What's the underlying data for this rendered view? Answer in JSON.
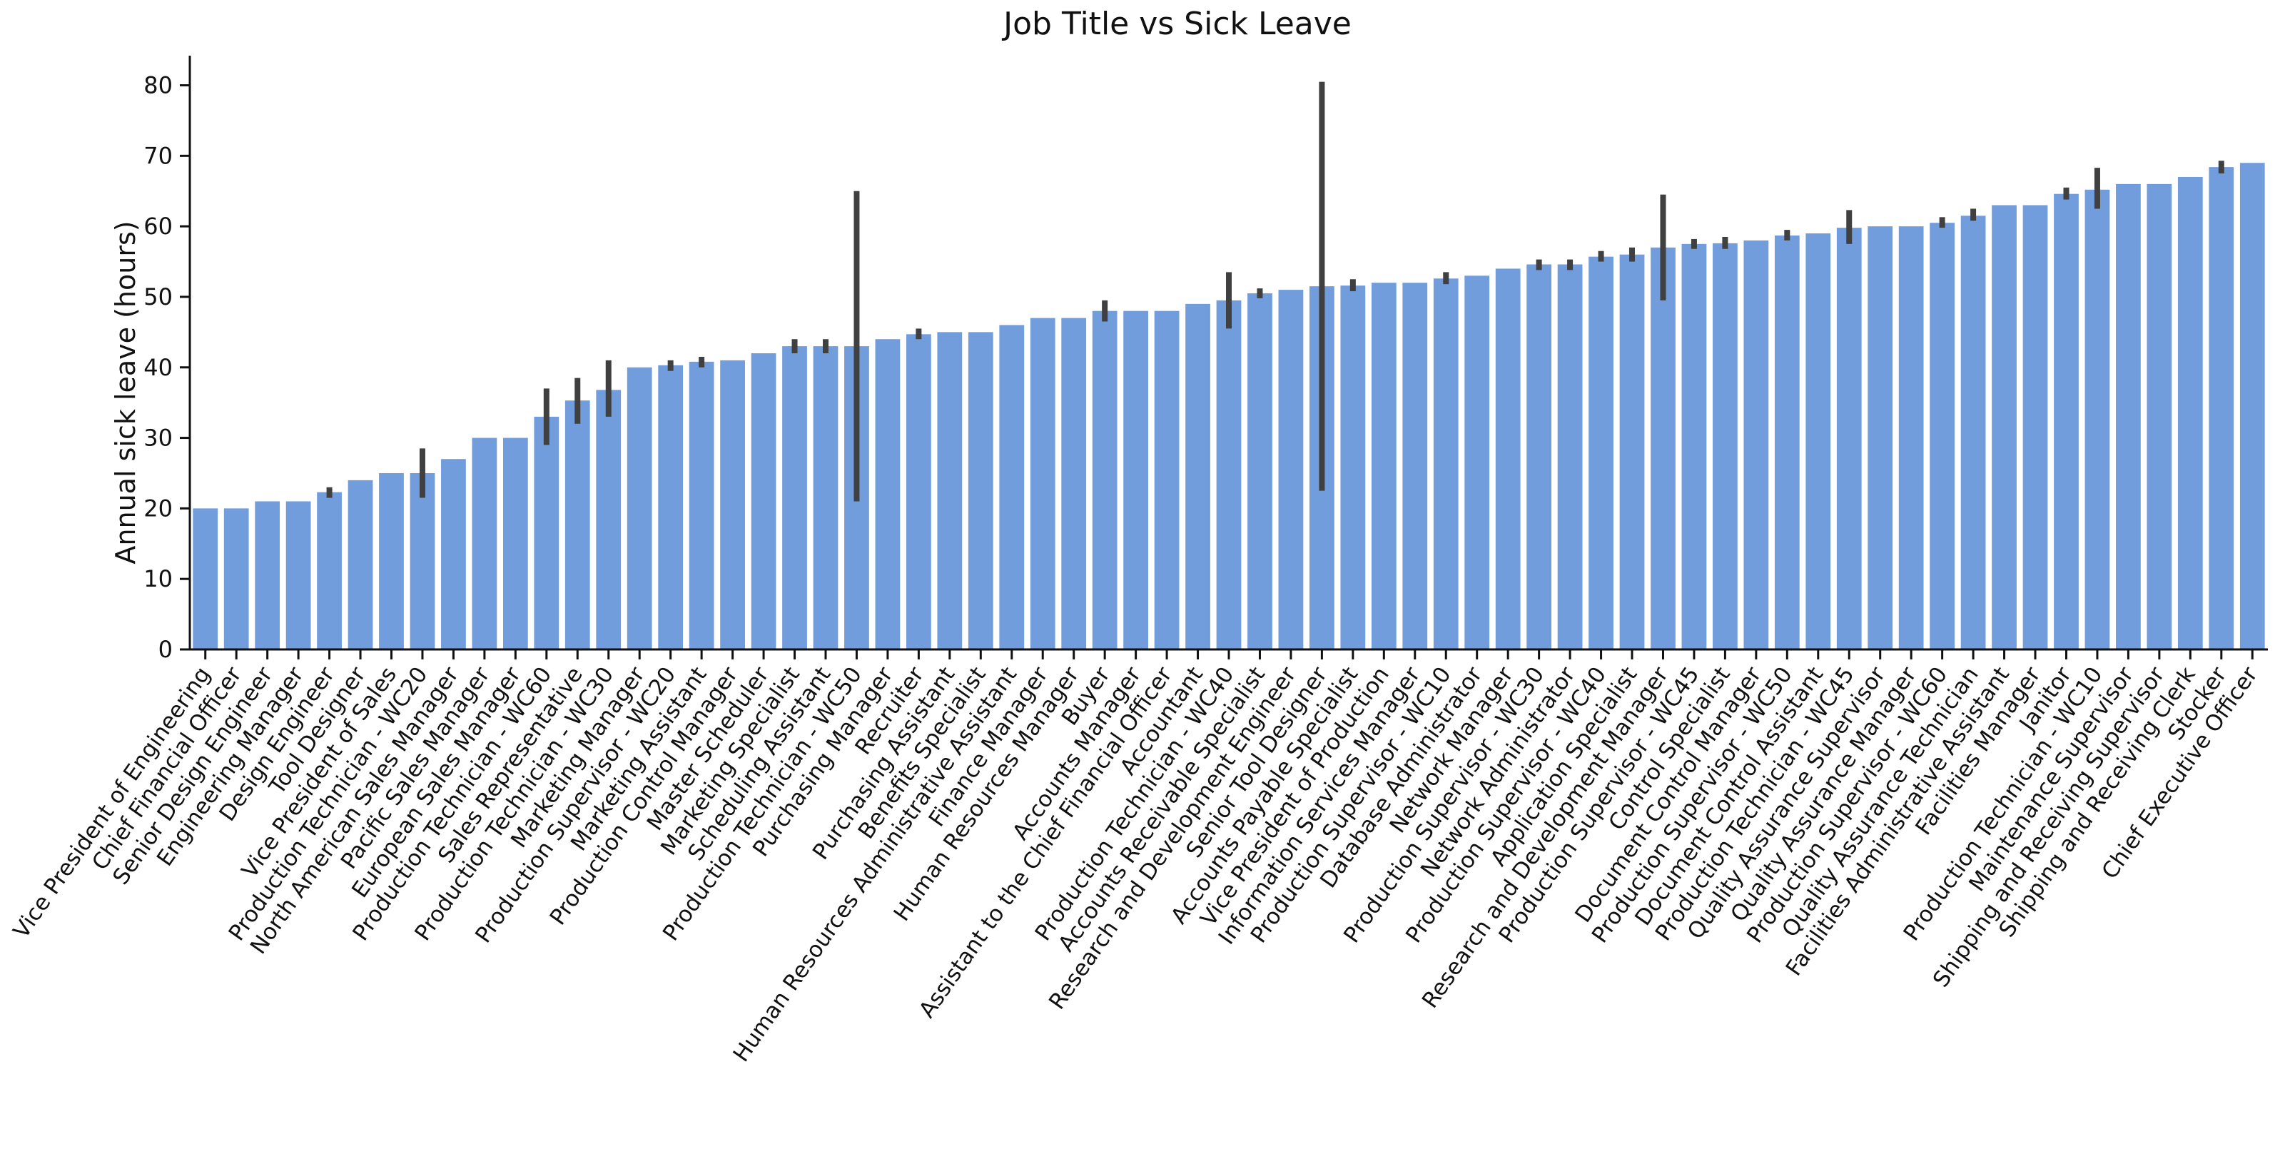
{
  "chart_data": {
    "type": "bar",
    "title": "Job Title vs Sick Leave",
    "xlabel": "",
    "ylabel": "Annual sick leave (hours)",
    "ylim": [
      0,
      84
    ],
    "yticks": [
      0,
      10,
      20,
      30,
      40,
      50,
      60,
      70,
      80
    ],
    "grid": false,
    "bar_color": "#729ddd",
    "error_color": "#404040",
    "categories": [
      "Vice President of Engineering",
      "Chief Financial Officer",
      "Senior Design Engineer",
      "Engineering Manager",
      "Design Engineer",
      "Tool Designer",
      "Vice President of Sales",
      "Production Technician - WC20",
      "North American Sales Manager",
      "Pacific Sales Manager",
      "European Sales Manager",
      "Production Technician - WC60",
      "Sales Representative",
      "Production Technician - WC30",
      "Marketing Manager",
      "Production Supervisor - WC20",
      "Marketing Assistant",
      "Production Control Manager",
      "Master Scheduler",
      "Marketing Specialist",
      "Scheduling Assistant",
      "Production Technician - WC50",
      "Purchasing Manager",
      "Recruiter",
      "Purchasing Assistant",
      "Benefits Specialist",
      "Human Resources Administrative Assistant",
      "Finance Manager",
      "Human Resources Manager",
      "Buyer",
      "Accounts Manager",
      "Assistant to the Chief Financial Officer",
      "Accountant",
      "Production Technician - WC40",
      "Accounts Receivable Specialist",
      "Research and Development Engineer",
      "Senior Tool Designer",
      "Accounts Payable Specialist",
      "Vice President of Production",
      "Information Services Manager",
      "Production Supervisor - WC10",
      "Database Administrator",
      "Network Manager",
      "Production Supervisor - WC30",
      "Network Administrator",
      "Production Supervisor - WC40",
      "Application Specialist",
      "Research and Development Manager",
      "Production Supervisor - WC45",
      "Control Specialist",
      "Document Control Manager",
      "Production Supervisor - WC50",
      "Document Control Assistant",
      "Production Technician - WC45",
      "Quality Assurance Supervisor",
      "Quality Assurance Manager",
      "Production Supervisor - WC60",
      "Quality Assurance Technician",
      "Facilities Administrative Assistant",
      "Facilities Manager",
      "Janitor",
      "Production Technician - WC10",
      "Maintenance Supervisor",
      "Shipping and Receiving Supervisor",
      "Shipping and Receiving Clerk",
      "Stocker",
      "Chief Executive Officer"
    ],
    "values": [
      20,
      20,
      21,
      21,
      22.3,
      24,
      25,
      25,
      27,
      30,
      30,
      33,
      35.3,
      36.8,
      40,
      40.3,
      40.8,
      41,
      42,
      43,
      43,
      43,
      44,
      44.7,
      45,
      45,
      46,
      47,
      47,
      48,
      48,
      48,
      49,
      49.5,
      50.5,
      51,
      51.5,
      51.6,
      52,
      52,
      52.6,
      53,
      54,
      54.6,
      54.6,
      55.7,
      56,
      57,
      57.5,
      57.6,
      58,
      58.7,
      59,
      59.8,
      60,
      60,
      60.5,
      61.5,
      63,
      63,
      64.6,
      65.2,
      66,
      66,
      67,
      68.4,
      69
    ],
    "error_low": [
      null,
      null,
      null,
      null,
      21.5,
      null,
      null,
      21.5,
      null,
      null,
      null,
      29,
      32,
      33,
      null,
      39.5,
      40,
      null,
      null,
      42,
      42,
      21,
      null,
      44,
      null,
      null,
      null,
      null,
      null,
      46.5,
      null,
      null,
      null,
      45.5,
      49.8,
      null,
      22.5,
      50.8,
      null,
      null,
      51.8,
      null,
      null,
      53.8,
      53.8,
      55,
      55,
      49.5,
      56.8,
      56.8,
      null,
      58,
      null,
      57.5,
      null,
      null,
      59.8,
      60.8,
      null,
      null,
      63.8,
      62.5,
      null,
      null,
      null,
      67.5,
      null
    ],
    "error_high": [
      null,
      null,
      null,
      null,
      23,
      null,
      null,
      28.5,
      null,
      null,
      null,
      37,
      38.5,
      41,
      null,
      41,
      41.5,
      null,
      null,
      44,
      44,
      65,
      null,
      45.5,
      null,
      null,
      null,
      null,
      null,
      49.5,
      null,
      null,
      null,
      53.5,
      51.2,
      null,
      80.5,
      52.5,
      null,
      null,
      53.5,
      null,
      null,
      55.3,
      55.3,
      56.5,
      57,
      64.5,
      58.2,
      58.5,
      null,
      59.5,
      null,
      62.3,
      null,
      null,
      61.3,
      62.5,
      null,
      null,
      65.5,
      68.3,
      null,
      null,
      null,
      69.3,
      null
    ]
  }
}
